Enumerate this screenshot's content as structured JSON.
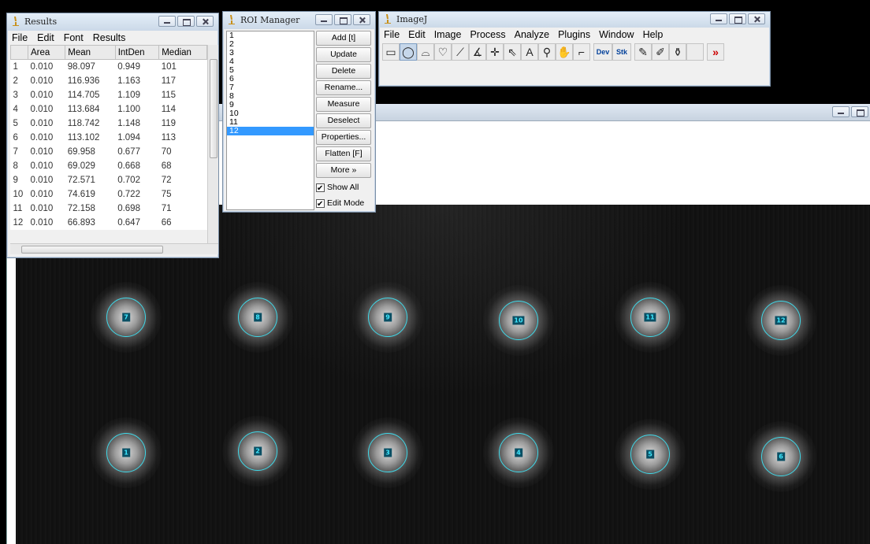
{
  "results_window": {
    "title": "Results",
    "menu": [
      "File",
      "Edit",
      "Font",
      "Results"
    ],
    "columns": [
      "",
      "Area",
      "Mean",
      "IntDen",
      "Median"
    ],
    "rows": [
      [
        "1",
        "0.010",
        "98.097",
        "0.949",
        "101"
      ],
      [
        "2",
        "0.010",
        "116.936",
        "1.163",
        "117"
      ],
      [
        "3",
        "0.010",
        "114.705",
        "1.109",
        "115"
      ],
      [
        "4",
        "0.010",
        "113.684",
        "1.100",
        "114"
      ],
      [
        "5",
        "0.010",
        "118.742",
        "1.148",
        "119"
      ],
      [
        "6",
        "0.010",
        "113.102",
        "1.094",
        "113"
      ],
      [
        "7",
        "0.010",
        "69.958",
        "0.677",
        "70"
      ],
      [
        "8",
        "0.010",
        "69.029",
        "0.668",
        "68"
      ],
      [
        "9",
        "0.010",
        "72.571",
        "0.702",
        "72"
      ],
      [
        "10",
        "0.010",
        "74.619",
        "0.722",
        "75"
      ],
      [
        "11",
        "0.010",
        "72.158",
        "0.698",
        "71"
      ],
      [
        "12",
        "0.010",
        "66.893",
        "0.647",
        "66"
      ]
    ]
  },
  "roi_manager": {
    "title": "ROI Manager",
    "items": [
      "1",
      "2",
      "3",
      "4",
      "5",
      "6",
      "7",
      "8",
      "9",
      "10",
      "11",
      "12"
    ],
    "selected": "12",
    "buttons": [
      "Add [t]",
      "Update",
      "Delete",
      "Rename...",
      "Measure",
      "Deselect",
      "Properties...",
      "Flatten [F]",
      "More »"
    ],
    "checkboxes": [
      "Show All",
      "Edit Mode"
    ]
  },
  "imagej": {
    "title": "ImageJ",
    "menu": [
      "File",
      "Edit",
      "Image",
      "Process",
      "Analyze",
      "Plugins",
      "Window",
      "Help"
    ],
    "tools": [
      {
        "name": "rectangle-tool-icon",
        "glyph": "▭"
      },
      {
        "name": "oval-tool-icon",
        "glyph": "◯",
        "active": true
      },
      {
        "name": "polygon-tool-icon",
        "glyph": "⌓"
      },
      {
        "name": "freehand-tool-icon",
        "glyph": "♡"
      },
      {
        "name": "line-tool-icon",
        "glyph": "⟋"
      },
      {
        "name": "angle-tool-icon",
        "glyph": "∡"
      },
      {
        "name": "point-tool-icon",
        "glyph": "✛"
      },
      {
        "name": "wand-tool-icon",
        "glyph": "⇖"
      },
      {
        "name": "text-tool-icon",
        "glyph": "A"
      },
      {
        "name": "magnifier-tool-icon",
        "glyph": "⚲"
      },
      {
        "name": "hand-tool-icon",
        "glyph": "✋"
      },
      {
        "name": "dropper-tool-icon",
        "glyph": "⌐"
      },
      {
        "name": "dev-menu-icon",
        "glyph": "Dev"
      },
      {
        "name": "stk-menu-icon",
        "glyph": "Stk"
      },
      {
        "name": "pencil-tool-icon",
        "glyph": "✎"
      },
      {
        "name": "brush-tool-icon",
        "glyph": "✐"
      },
      {
        "name": "flood-fill-tool-icon",
        "glyph": "⚱"
      },
      {
        "name": "blank-tool-icon",
        "glyph": ""
      },
      {
        "name": "more-tools-icon",
        "glyph": "»"
      }
    ]
  },
  "image": {
    "rois": [
      "7",
      "8",
      "9",
      "10",
      "11",
      "12",
      "1",
      "2",
      "3",
      "4",
      "5",
      "6"
    ]
  },
  "colors": {
    "roi_outline": "#3fd8e8",
    "selection": "#3399ff"
  }
}
